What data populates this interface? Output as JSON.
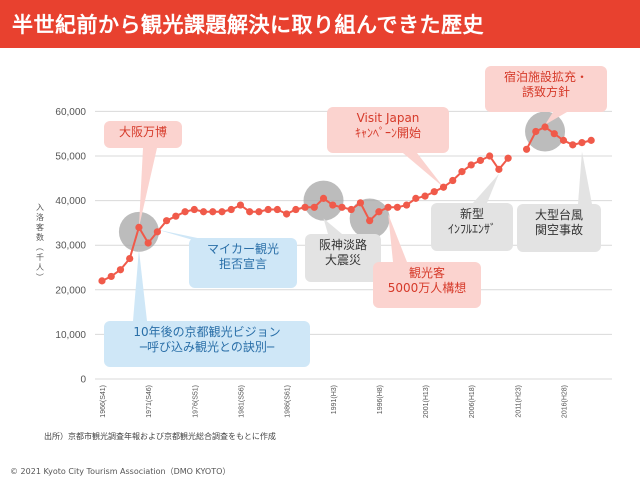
{
  "header": {
    "title": "半世紀前から観光課題解決に取り組んできた歴史"
  },
  "colors": {
    "accent": "#e8412f",
    "line": "#f05a4a",
    "highlight": "#a6a6a6"
  },
  "chart_data": {
    "type": "line",
    "title": "半世紀前から観光課題解決に取り組んできた歴史",
    "ylabel": "入洛客数（千人）",
    "ylim": [
      0,
      60000
    ],
    "yticks": [
      "0",
      "10,000",
      "20,000",
      "30,000",
      "40,000",
      "50,000",
      "60,000"
    ],
    "xtick_labels": [
      "1966(S41)",
      "1971(S46)",
      "1976(S51)",
      "1981(S56)",
      "1986(S61)",
      "1991(H3)",
      "1996(H8)",
      "2001(H13)",
      "2006(H18)",
      "2011(H23)",
      "2016(H28)"
    ],
    "series": [
      {
        "name": "入洛客数",
        "segments": [
          {
            "x": [
              1966,
              1967,
              1968,
              1969,
              1970,
              1971,
              1972,
              1973,
              1974,
              1975,
              1976,
              1977,
              1978,
              1979,
              1980,
              1981,
              1982,
              1983,
              1984,
              1985,
              1986,
              1987,
              1988,
              1989,
              1990,
              1991,
              1992,
              1993,
              1994,
              1995,
              1996,
              1997,
              1998,
              1999,
              2000,
              2001,
              2002,
              2003,
              2004,
              2005,
              2006,
              2007,
              2008,
              2009,
              2010
            ],
            "y": [
              22000,
              23000,
              24500,
              27000,
              34000,
              30500,
              33000,
              35500,
              36500,
              37500,
              38000,
              37500,
              37500,
              37500,
              38000,
              39000,
              37500,
              37500,
              38000,
              38000,
              37000,
              38000,
              38500,
              38500,
              40500,
              39000,
              38500,
              38000,
              39500,
              35500,
              37500,
              38500,
              38500,
              39000,
              40500,
              41000,
              42000,
              43000,
              44500,
              46500,
              48000,
              49000,
              50000,
              47000,
              49500
            ]
          },
          {
            "x": [
              2012,
              2013,
              2014,
              2015,
              2016,
              2017,
              2018,
              2019
            ],
            "y": [
              51500,
              55500,
              56500,
              55000,
              53500,
              52500,
              53000,
              53500
            ]
          }
        ]
      }
    ],
    "highlights": [
      {
        "x": 1970,
        "y": 33000
      },
      {
        "x": 1990,
        "y": 40000
      },
      {
        "x": 1995,
        "y": 36000
      },
      {
        "x": 2014,
        "y": 55500
      }
    ],
    "annotations": [
      {
        "id": "expo",
        "style": "red",
        "lines": [
          "大阪万博"
        ]
      },
      {
        "id": "visit-japan",
        "style": "red",
        "lines": [
          "Visit Japan",
          "ｷｬﾝﾍﾟｰﾝ開始"
        ]
      },
      {
        "id": "accommodation",
        "style": "red",
        "lines": [
          "宿泊施設拡充・",
          "誘致方針"
        ]
      },
      {
        "id": "mycar",
        "style": "blue",
        "lines": [
          "マイカー観光",
          "拒否宣言"
        ]
      },
      {
        "id": "earthquake",
        "style": "gray",
        "lines": [
          "阪神淡路",
          "大震災"
        ]
      },
      {
        "id": "influenza",
        "style": "gray",
        "lines": [
          "新型",
          "ｲﾝﾌﾙｴﾝｻﾞ"
        ]
      },
      {
        "id": "typhoon",
        "style": "gray",
        "lines": [
          "大型台風",
          "関空事故"
        ]
      },
      {
        "id": "50m-plan",
        "style": "red",
        "lines": [
          "観光客",
          "5000万人構想"
        ]
      },
      {
        "id": "vision",
        "style": "blue",
        "lines": [
          "10年後の京都観光ビジョン",
          "─呼び込み観光との訣別─"
        ]
      }
    ]
  },
  "source_note": "出所）京都市観光調査年報および京都観光総合調査をもとに作成",
  "copyright": "© 2021 Kyoto City Tourism Association（DMO KYOTO）"
}
